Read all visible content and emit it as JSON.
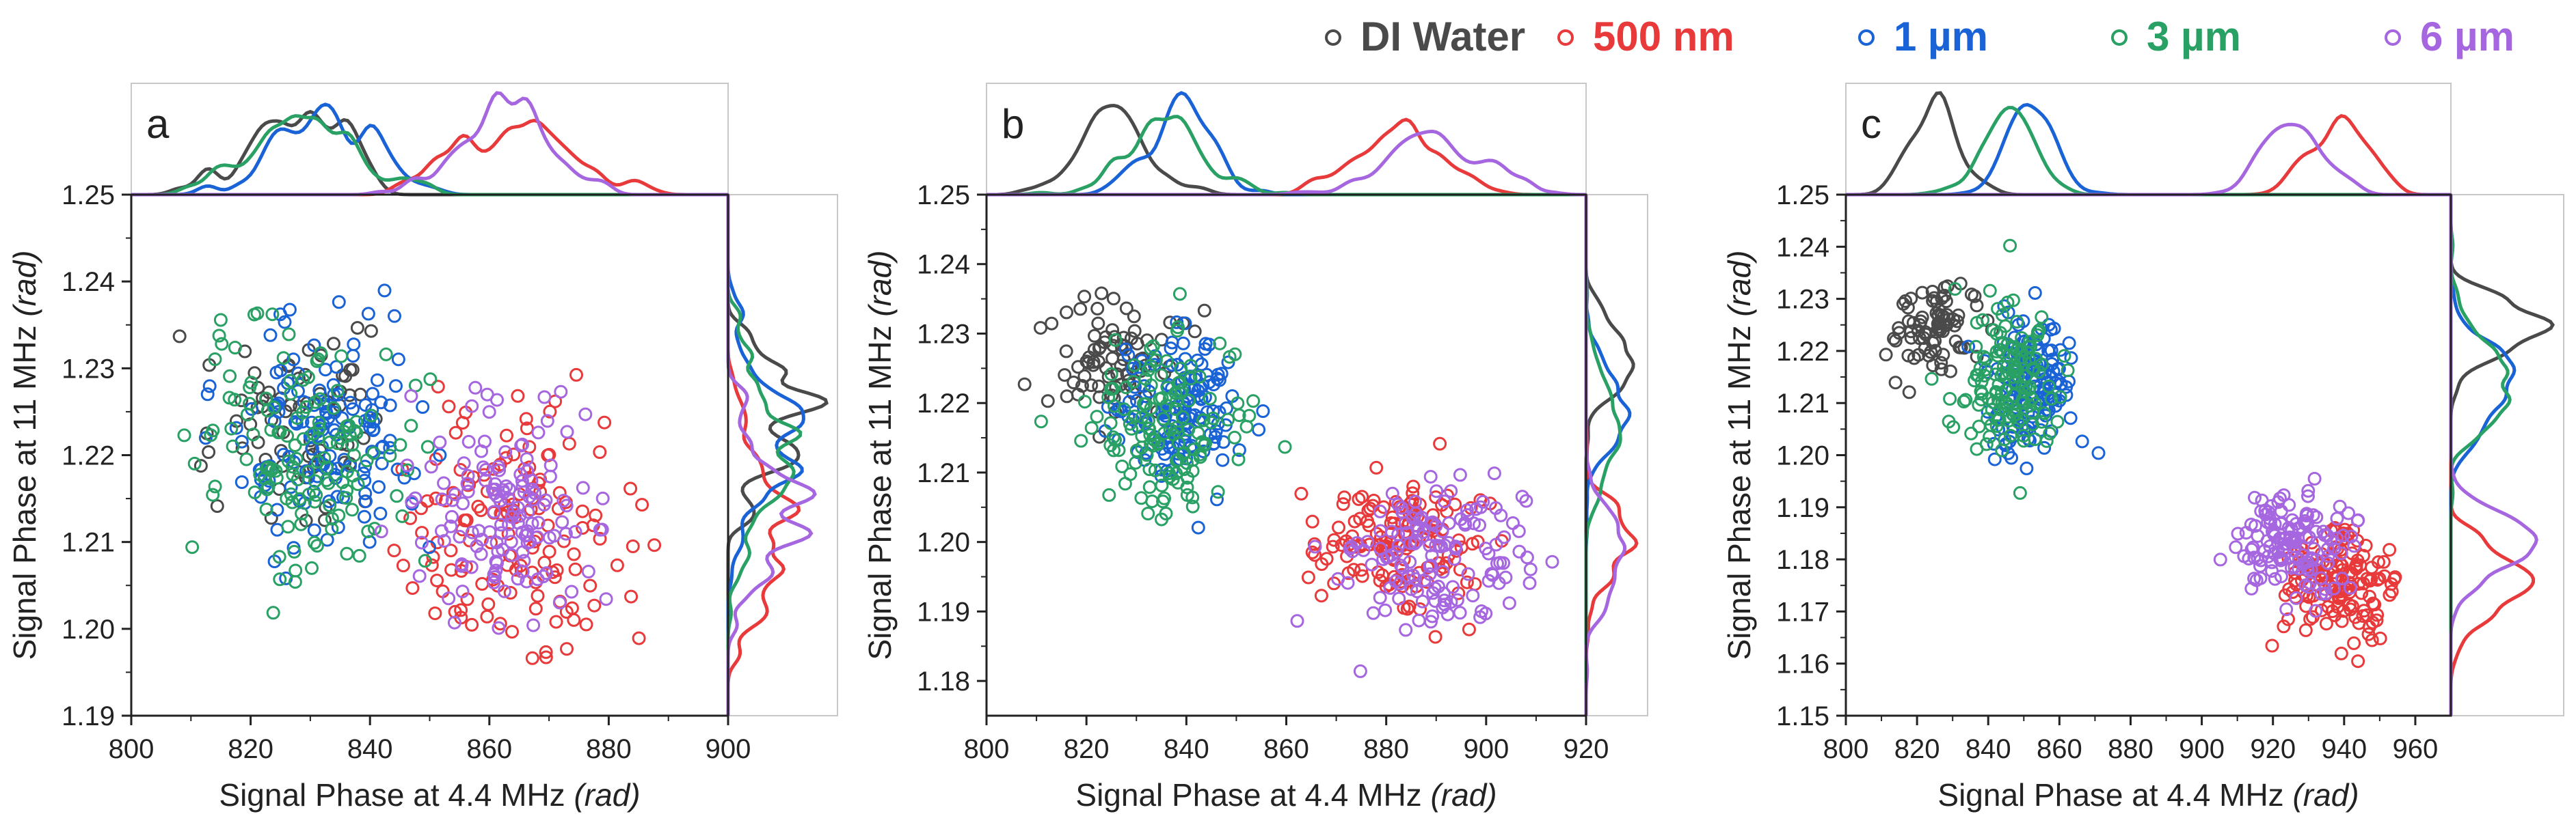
{
  "legend": [
    {
      "label": "DI Water",
      "color": "#4a4a4a"
    },
    {
      "label": "500 nm",
      "color": "#e8393b"
    },
    {
      "label": "1 µm",
      "color": "#1a63d6"
    },
    {
      "label": "3 µm",
      "color": "#2aa164"
    },
    {
      "label": "6 µm",
      "color": "#a566e0"
    }
  ],
  "chart_data": [
    {
      "type": "scatter",
      "panel": "a",
      "xlabel": "Signal Phase at 4.4 MHz",
      "xunit": "(rad)",
      "ylabel": "Signal Phase at 11 MHz",
      "yunit": "(rad)",
      "xlim": [
        800,
        900
      ],
      "ylim": [
        1.19,
        1.25
      ],
      "xticks": [
        800,
        820,
        840,
        860,
        880,
        900
      ],
      "yticks": [
        1.19,
        1.2,
        1.21,
        1.22,
        1.23,
        1.24,
        1.25
      ],
      "series": [
        {
          "name": "DI Water",
          "center": [
            826,
            1.224
          ],
          "spread": [
            8,
            0.005
          ],
          "n": 70
        },
        {
          "name": "500 nm",
          "center": [
            865,
            1.211
          ],
          "spread": [
            10,
            0.0065
          ],
          "n": 140
        },
        {
          "name": "1 µm",
          "center": [
            833,
            1.222
          ],
          "spread": [
            8,
            0.0062
          ],
          "n": 140
        },
        {
          "name": "3 µm",
          "center": [
            830,
            1.221
          ],
          "spread": [
            9,
            0.0068
          ],
          "n": 140
        },
        {
          "name": "6 µm",
          "center": [
            862,
            1.214
          ],
          "spread": [
            8,
            0.0055
          ],
          "n": 140
        }
      ]
    },
    {
      "type": "scatter",
      "panel": "b",
      "xlabel": "Signal Phase at 4.4 MHz",
      "xunit": "(rad)",
      "ylabel": "Signal Phase at 11 MHz",
      "yunit": "(rad)",
      "xlim": [
        800,
        920
      ],
      "ylim": [
        1.175,
        1.25
      ],
      "xticks": [
        800,
        820,
        840,
        860,
        880,
        900,
        920
      ],
      "yticks": [
        1.18,
        1.19,
        1.2,
        1.21,
        1.22,
        1.23,
        1.24,
        1.25
      ],
      "series": [
        {
          "name": "DI Water",
          "center": [
            826,
            1.226
          ],
          "spread": [
            6,
            0.0045
          ],
          "n": 80
        },
        {
          "name": "500 nm",
          "center": [
            882,
            1.2
          ],
          "spread": [
            8,
            0.0045
          ],
          "n": 140
        },
        {
          "name": "1 µm",
          "center": [
            840,
            1.219
          ],
          "spread": [
            7,
            0.0055
          ],
          "n": 140
        },
        {
          "name": "3 µm",
          "center": [
            836,
            1.217
          ],
          "spread": [
            8,
            0.0065
          ],
          "n": 140
        },
        {
          "name": "6 µm",
          "center": [
            890,
            1.197
          ],
          "spread": [
            9,
            0.0055
          ],
          "n": 140
        }
      ]
    },
    {
      "type": "scatter",
      "panel": "c",
      "xlabel": "Signal Phase at 4.4 MHz",
      "xunit": "(rad)",
      "ylabel": "Signal Phase at 11 MHz",
      "yunit": "(rad)",
      "xlim": [
        800,
        970
      ],
      "ylim": [
        1.15,
        1.25
      ],
      "xticks": [
        800,
        820,
        840,
        860,
        880,
        900,
        920,
        940,
        960
      ],
      "yticks": [
        1.15,
        1.16,
        1.17,
        1.18,
        1.19,
        1.2,
        1.21,
        1.22,
        1.23,
        1.24,
        1.25
      ],
      "series": [
        {
          "name": "DI Water",
          "center": [
            825,
            1.224
          ],
          "spread": [
            6,
            0.0045
          ],
          "n": 80
        },
        {
          "name": "500 nm",
          "center": [
            938,
            1.175
          ],
          "spread": [
            8,
            0.006
          ],
          "n": 140
        },
        {
          "name": "1 µm",
          "center": [
            852,
            1.214
          ],
          "spread": [
            6,
            0.0065
          ],
          "n": 140
        },
        {
          "name": "3 µm",
          "center": [
            846,
            1.215
          ],
          "spread": [
            7,
            0.007
          ],
          "n": 140
        },
        {
          "name": "6 µm",
          "center": [
            926,
            1.183
          ],
          "spread": [
            8,
            0.0055
          ],
          "n": 140
        }
      ]
    }
  ]
}
